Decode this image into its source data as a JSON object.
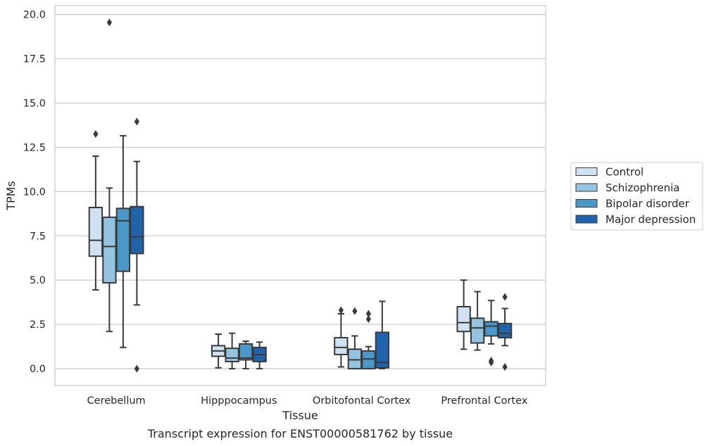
{
  "chart_data": {
    "type": "boxplot",
    "title": "Transcript expression for ENST00000581762 by tissue",
    "xlabel": "Tissue",
    "ylabel": "TPMs",
    "ylim": [
      -0.95,
      20.5
    ],
    "yticks": [
      "0.0",
      "2.5",
      "5.0",
      "7.5",
      "10.0",
      "12.5",
      "15.0",
      "17.5",
      "20.0"
    ],
    "grid": true,
    "legend_position": "right",
    "categories": [
      "Cerebellum",
      "Hipppocampus",
      "Orbitofontal Cortex",
      "Prefrontal Cortex"
    ],
    "series": [
      {
        "name": "Control",
        "color": "#d0e1f2",
        "boxes": [
          {
            "whislo": 4.45,
            "q1": 6.35,
            "med": 7.25,
            "q3": 9.1,
            "whishi": 12.0,
            "fliers": [
              13.25
            ]
          },
          {
            "whislo": 0.05,
            "q1": 0.7,
            "med": 1.0,
            "q3": 1.3,
            "whishi": 1.95,
            "fliers": []
          },
          {
            "whislo": 0.1,
            "q1": 0.8,
            "med": 1.2,
            "q3": 1.75,
            "whishi": 3.1,
            "fliers": [
              3.3
            ]
          },
          {
            "whislo": 1.1,
            "q1": 2.1,
            "med": 2.6,
            "q3": 3.5,
            "whishi": 5.0,
            "fliers": []
          }
        ]
      },
      {
        "name": "Schizophrenia",
        "color": "#94c4df",
        "boxes": [
          {
            "whislo": 2.1,
            "q1": 4.85,
            "med": 6.9,
            "q3": 8.55,
            "whishi": 10.2,
            "fliers": [
              19.55
            ]
          },
          {
            "whislo": 0.0,
            "q1": 0.4,
            "med": 0.6,
            "q3": 1.15,
            "whishi": 2.0,
            "fliers": []
          },
          {
            "whislo": 0.0,
            "q1": 0.0,
            "med": 0.5,
            "q3": 1.1,
            "whishi": 1.85,
            "fliers": [
              3.25
            ]
          },
          {
            "whislo": 1.05,
            "q1": 1.45,
            "med": 2.3,
            "q3": 2.85,
            "whishi": 4.35,
            "fliers": []
          }
        ]
      },
      {
        "name": "Bipolar disorder",
        "color": "#4a98c9",
        "boxes": [
          {
            "whislo": 1.2,
            "q1": 5.5,
            "med": 8.35,
            "q3": 9.05,
            "whishi": 13.15,
            "fliers": []
          },
          {
            "whislo": 0.0,
            "q1": 0.5,
            "med": 0.6,
            "q3": 1.4,
            "whishi": 1.55,
            "fliers": []
          },
          {
            "whislo": 0.0,
            "q1": 0.0,
            "med": 0.55,
            "q3": 1.0,
            "whishi": 1.25,
            "fliers": [
              3.1,
              2.8
            ]
          },
          {
            "whislo": 1.4,
            "q1": 1.85,
            "med": 2.4,
            "q3": 2.65,
            "whishi": 3.85,
            "fliers": [
              0.45,
              0.35
            ]
          }
        ]
      },
      {
        "name": "Major depression",
        "color": "#2163aa",
        "boxes": [
          {
            "whislo": 3.6,
            "q1": 6.5,
            "med": 7.45,
            "q3": 9.15,
            "whishi": 11.7,
            "fliers": [
              13.95,
              0.0
            ]
          },
          {
            "whislo": 0.0,
            "q1": 0.4,
            "med": 0.8,
            "q3": 1.2,
            "whishi": 1.5,
            "fliers": []
          },
          {
            "whislo": 0.0,
            "q1": 0.05,
            "med": 0.35,
            "q3": 2.05,
            "whishi": 3.8,
            "fliers": []
          },
          {
            "whislo": 1.3,
            "q1": 1.75,
            "med": 2.0,
            "q3": 2.55,
            "whishi": 3.4,
            "fliers": [
              4.05,
              0.1
            ]
          }
        ]
      }
    ]
  }
}
